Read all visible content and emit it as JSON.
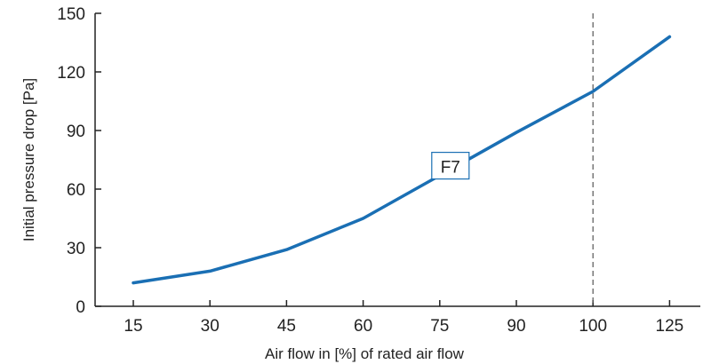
{
  "chart_data": {
    "type": "line",
    "title": "",
    "xlabel": "Air flow in [%] of rated air flow",
    "ylabel": "Initial pressure drop [Pa]",
    "x_ticks": [
      "15",
      "30",
      "45",
      "60",
      "75",
      "90",
      "100",
      "125"
    ],
    "y_ticks": [
      "0",
      "30",
      "60",
      "90",
      "120",
      "150"
    ],
    "ylim": [
      0,
      150
    ],
    "grid": false,
    "reference_line": {
      "x": "100",
      "style": "dashed"
    },
    "series": [
      {
        "name": "F7",
        "color": "#1a6fb4",
        "x": [
          "15",
          "30",
          "45",
          "60",
          "75",
          "90",
          "100",
          "125"
        ],
        "values": [
          12,
          18,
          29,
          45,
          67,
          89,
          110,
          138
        ]
      }
    ]
  }
}
